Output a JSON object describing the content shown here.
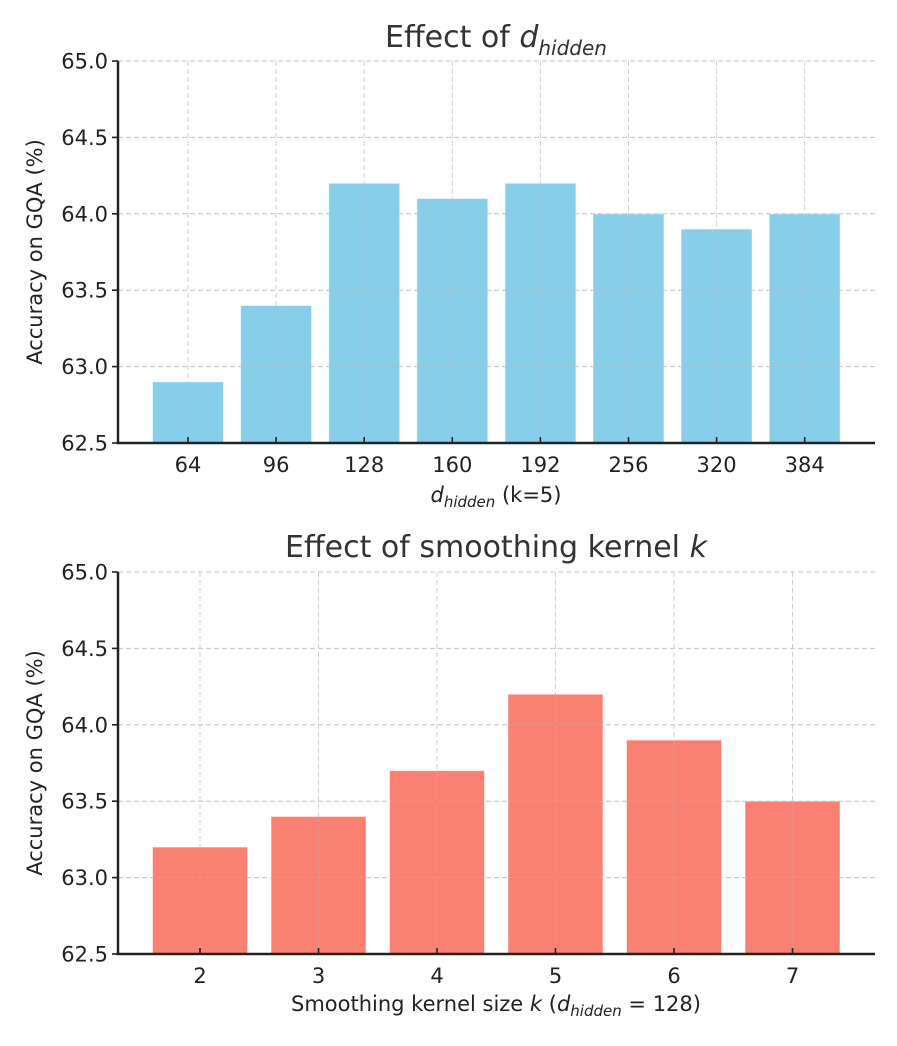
{
  "chart_data": [
    {
      "type": "bar",
      "title_prefix": "Effect of ",
      "title_math_base": "d",
      "title_math_sub": "hidden",
      "categories": [
        "64",
        "96",
        "128",
        "160",
        "192",
        "256",
        "320",
        "384"
      ],
      "values": [
        62.9,
        63.4,
        64.2,
        64.1,
        64.2,
        64.0,
        63.9,
        64.0
      ],
      "xlabel_math_base": "d",
      "xlabel_math_sub": "hidden",
      "xlabel_suffix": " (k=5)",
      "ylabel": "Accuracy on GQA (%)",
      "ylim": [
        62.5,
        65.0
      ],
      "yticks": [
        "62.5",
        "63.0",
        "63.5",
        "64.0",
        "64.5",
        "65.0"
      ],
      "grid": true,
      "color": "#87CEEB"
    },
    {
      "type": "bar",
      "title_prefix": "Effect of smoothing kernel ",
      "title_math_italic": "k",
      "categories": [
        "2",
        "3",
        "4",
        "5",
        "6",
        "7"
      ],
      "values": [
        63.2,
        63.4,
        63.7,
        64.2,
        63.9,
        63.5
      ],
      "xlabel_prefix": "Smoothing kernel size ",
      "xlabel_math_italic": "k",
      "xlabel_paren_open": " (",
      "xlabel_math_base": "d",
      "xlabel_math_sub": "hidden",
      "xlabel_suffix": " = 128)",
      "ylabel": "Accuracy on GQA (%)",
      "ylim": [
        62.5,
        65.0
      ],
      "yticks": [
        "62.5",
        "63.0",
        "63.5",
        "64.0",
        "64.5",
        "65.0"
      ],
      "grid": true,
      "color": "#FA8072"
    }
  ]
}
